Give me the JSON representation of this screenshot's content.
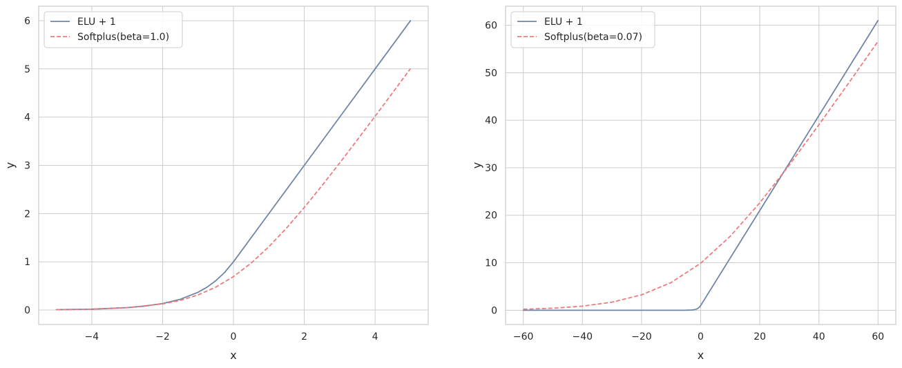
{
  "colors": {
    "elu": "#6e86a4",
    "softplus": "#ee7b7b",
    "grid": "#cccccc",
    "frame": "#cccccc",
    "text": "#262626"
  },
  "chart_data": [
    {
      "type": "line",
      "title": "",
      "xlabel": "x",
      "ylabel": "y",
      "xlim": [
        -5.5,
        5.5
      ],
      "ylim": [
        -0.3,
        6.3
      ],
      "xticks": [
        -4,
        -2,
        0,
        2,
        4
      ],
      "xtick_labels": [
        "−4",
        "−2",
        "0",
        "2",
        "4"
      ],
      "yticks": [
        0,
        1,
        2,
        3,
        4,
        5,
        6
      ],
      "ytick_labels": [
        "0",
        "1",
        "2",
        "3",
        "4",
        "5",
        "6"
      ],
      "grid": true,
      "legend_position": "top-left",
      "series": [
        {
          "name": "ELU + 1",
          "style": "solid",
          "x": [
            -5,
            -4,
            -3,
            -2.5,
            -2,
            -1.5,
            -1,
            -0.75,
            -0.5,
            -0.25,
            0,
            1,
            2,
            3,
            4,
            5
          ],
          "y": [
            0.007,
            0.018,
            0.05,
            0.082,
            0.135,
            0.223,
            0.368,
            0.472,
            0.607,
            0.779,
            1,
            2,
            3,
            4,
            5,
            6
          ]
        },
        {
          "name": "Softplus(beta=1.0)",
          "style": "dashed",
          "x": [
            -5,
            -4,
            -3,
            -2,
            -1.5,
            -1,
            -0.5,
            0,
            0.5,
            1,
            1.5,
            2,
            2.5,
            3,
            3.5,
            4,
            4.5,
            5
          ],
          "y": [
            0.007,
            0.018,
            0.049,
            0.127,
            0.201,
            0.313,
            0.474,
            0.693,
            0.974,
            1.313,
            1.701,
            2.127,
            2.579,
            3.049,
            3.53,
            4.018,
            4.511,
            5.007
          ]
        }
      ]
    },
    {
      "type": "line",
      "title": "",
      "xlabel": "x",
      "ylabel": "y",
      "xlim": [
        -66,
        66
      ],
      "ylim": [
        -3,
        64
      ],
      "xticks": [
        -60,
        -40,
        -20,
        0,
        20,
        40,
        60
      ],
      "xtick_labels": [
        "−60",
        "−40",
        "−20",
        "0",
        "20",
        "40",
        "60"
      ],
      "yticks": [
        0,
        10,
        20,
        30,
        40,
        50,
        60
      ],
      "ytick_labels": [
        "0",
        "10",
        "20",
        "30",
        "40",
        "50",
        "60"
      ],
      "grid": true,
      "legend_position": "top-left",
      "series": [
        {
          "name": "ELU + 1",
          "style": "solid",
          "x": [
            -60,
            -10,
            -5,
            -3,
            -2,
            -1.5,
            -1,
            -0.5,
            0,
            60
          ],
          "y": [
            0,
            0,
            0.007,
            0.05,
            0.135,
            0.223,
            0.368,
            0.607,
            1,
            61
          ]
        },
        {
          "name": "Softplus(beta=0.07)",
          "style": "dashed",
          "x": [
            -60,
            -50,
            -40,
            -30,
            -20,
            -10,
            0,
            10,
            20,
            30,
            40,
            50,
            60
          ],
          "y": [
            0.21,
            0.43,
            0.86,
            1.7,
            3.24,
            5.83,
            9.9,
            15.57,
            22.62,
            30.58,
            39.05,
            47.77,
            56.61
          ]
        }
      ]
    }
  ]
}
